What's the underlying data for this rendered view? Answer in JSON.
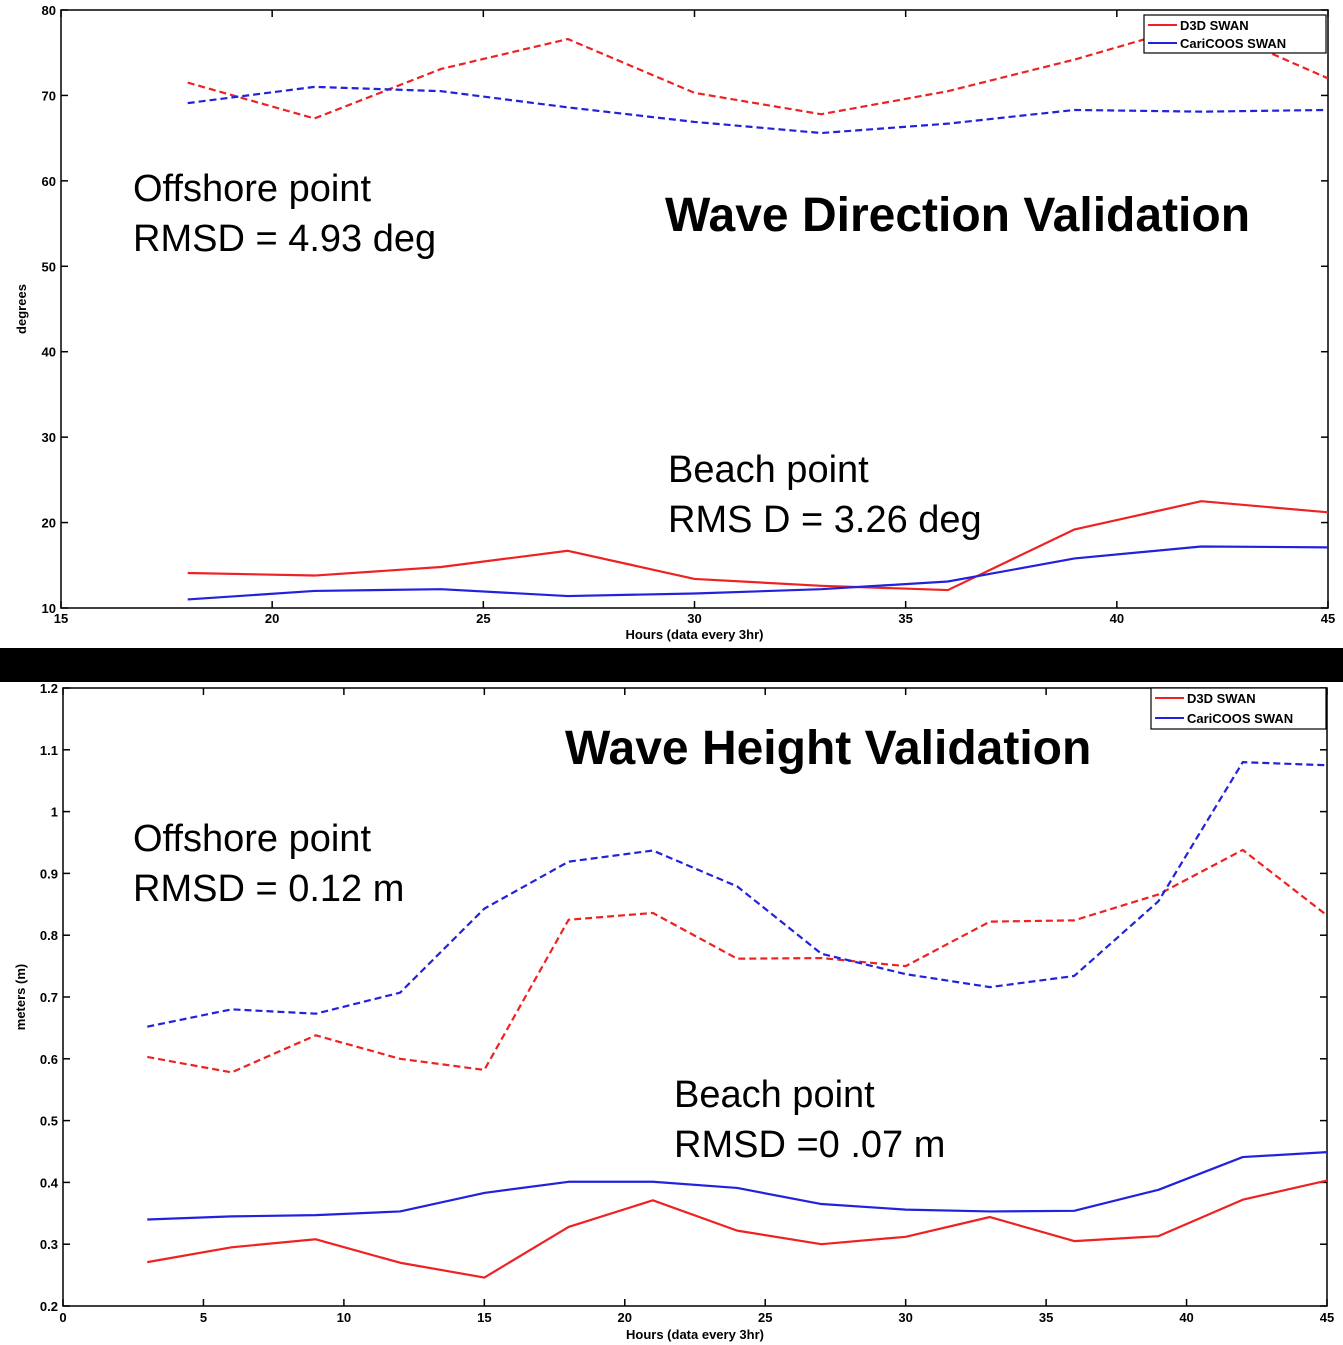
{
  "chart_data": [
    {
      "type": "line",
      "title": "Wave Direction Validation",
      "xlabel": "Hours (data every 3hr)",
      "ylabel": "degrees",
      "xlim": [
        15,
        45
      ],
      "ylim": [
        10,
        80
      ],
      "xticks": [
        15,
        20,
        25,
        30,
        35,
        40,
        45
      ],
      "yticks": [
        10,
        20,
        30,
        40,
        50,
        60,
        70,
        80
      ],
      "legend": [
        "D3D SWAN",
        "CariCOOS SWAN"
      ],
      "legend_position": "top-right",
      "colors": {
        "d3d": "#ee2222",
        "caricoos": "#2222dd"
      },
      "annotations": [
        {
          "lines": [
            "Offshore point",
            "RMSD = 4.93 deg"
          ]
        },
        {
          "lines": [
            "Beach point",
            "RMS D = 3.26 deg"
          ]
        }
      ],
      "x": [
        18,
        21,
        24,
        27,
        30,
        33,
        36,
        39,
        42,
        45
      ],
      "series": [
        {
          "name": "D3D SWAN",
          "location": "offshore",
          "style": "dashed",
          "color": "#ee2222",
          "values": [
            71.5,
            67.3,
            73.1,
            76.6,
            70.3,
            67.8,
            70.5,
            74.2,
            78.5,
            72.0
          ]
        },
        {
          "name": "CariCOOS SWAN",
          "location": "offshore",
          "style": "dashed",
          "color": "#2222dd",
          "values": [
            69.1,
            71.0,
            70.5,
            68.6,
            66.9,
            65.6,
            66.7,
            68.3,
            68.1,
            68.3
          ]
        },
        {
          "name": "D3D SWAN",
          "location": "beach",
          "style": "solid",
          "color": "#ee2222",
          "values": [
            14.1,
            13.8,
            14.8,
            16.7,
            13.4,
            12.6,
            12.1,
            19.2,
            22.5,
            21.2
          ]
        },
        {
          "name": "CariCOOS SWAN",
          "location": "beach",
          "style": "solid",
          "color": "#2222dd",
          "values": [
            11.0,
            12.0,
            12.2,
            11.4,
            11.7,
            12.2,
            13.1,
            15.8,
            17.2,
            17.1
          ]
        }
      ]
    },
    {
      "type": "line",
      "title": "Wave Height Validation",
      "xlabel": "Hours (data every 3hr)",
      "ylabel": "meters (m)",
      "xlim": [
        0,
        45
      ],
      "ylim": [
        0.2,
        1.2
      ],
      "xticks": [
        0,
        5,
        10,
        15,
        20,
        25,
        30,
        35,
        40,
        45
      ],
      "yticks": [
        0.2,
        0.3,
        0.4,
        0.5,
        0.6,
        0.7,
        0.8,
        0.9,
        1,
        1.1,
        1.2
      ],
      "legend": [
        "D3D SWAN",
        "CariCOOS SWAN"
      ],
      "legend_position": "top-right",
      "colors": {
        "d3d": "#ee2222",
        "caricoos": "#2222dd"
      },
      "annotations": [
        {
          "lines": [
            "Offshore point",
            "RMSD = 0.12 m"
          ]
        },
        {
          "lines": [
            "Beach point",
            "RMSD =0 .07 m"
          ]
        }
      ],
      "x": [
        3,
        6,
        9,
        12,
        15,
        18,
        21,
        24,
        27,
        30,
        33,
        36,
        39,
        42,
        45
      ],
      "series": [
        {
          "name": "D3D SWAN",
          "location": "offshore",
          "style": "dashed",
          "color": "#ee2222",
          "values": [
            0.603,
            0.578,
            0.638,
            0.6,
            0.582,
            0.825,
            0.836,
            0.762,
            0.763,
            0.75,
            0.822,
            0.824,
            0.866,
            0.938,
            0.832
          ]
        },
        {
          "name": "CariCOOS SWAN",
          "location": "offshore",
          "style": "dashed",
          "color": "#2222dd",
          "values": [
            0.652,
            0.68,
            0.673,
            0.707,
            0.843,
            0.919,
            0.937,
            0.879,
            0.77,
            0.737,
            0.716,
            0.734,
            0.855,
            1.08,
            1.075
          ]
        },
        {
          "name": "D3D SWAN",
          "location": "beach",
          "style": "solid",
          "color": "#ee2222",
          "values": [
            0.271,
            0.295,
            0.308,
            0.27,
            0.246,
            0.328,
            0.371,
            0.322,
            0.3,
            0.312,
            0.344,
            0.305,
            0.313,
            0.372,
            0.403
          ]
        },
        {
          "name": "CariCOOS SWAN",
          "location": "beach",
          "style": "solid",
          "color": "#2222dd",
          "values": [
            0.34,
            0.345,
            0.347,
            0.353,
            0.383,
            0.401,
            0.401,
            0.391,
            0.365,
            0.356,
            0.353,
            0.354,
            0.388,
            0.441,
            0.449
          ]
        }
      ]
    }
  ]
}
